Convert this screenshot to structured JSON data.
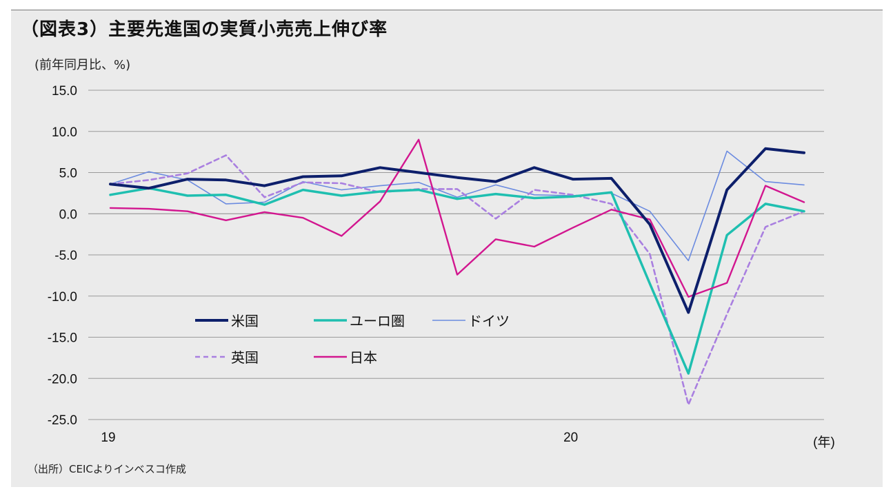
{
  "header": {
    "title": "（図表3）主要先進国の実質小売売上伸び率",
    "unit": "(前年同月比、%)"
  },
  "footer": {
    "source": "（出所）CEICよりインベスコ作成"
  },
  "chart_data": {
    "type": "line",
    "title": "（図表3）主要先進国の実質小売売上伸び率",
    "ylabel": "(前年同月比、%)",
    "xlabel": "(年)",
    "ylim": [
      -25,
      15
    ],
    "yticks": [
      15,
      10,
      5,
      0,
      -5,
      -10,
      -15,
      -20,
      -25
    ],
    "ytick_labels": [
      "15.0",
      "10.0",
      "5.0",
      "0.0",
      "-5.0",
      "-10.0",
      "-15.0",
      "-20.0",
      "-25.0"
    ],
    "x_labels": [
      {
        "index": 0,
        "label": "19"
      },
      {
        "index": 12,
        "label": "20"
      }
    ],
    "x_unit_label": "(年)",
    "n_points": 19,
    "grid": true,
    "series": [
      {
        "name": "米国",
        "color": "#0d1f6b",
        "dash": false,
        "width": 4,
        "values": [
          3.6,
          3.1,
          4.2,
          4.1,
          3.4,
          4.5,
          4.6,
          5.6,
          5.0,
          4.4,
          3.9,
          5.6,
          4.2,
          4.3,
          -1.3,
          -12.0,
          2.9,
          7.9,
          7.4
        ]
      },
      {
        "name": "ユーロ圏",
        "color": "#1fbfb0",
        "dash": false,
        "width": 3.5,
        "values": [
          2.3,
          3.1,
          2.2,
          2.3,
          1.1,
          2.9,
          2.2,
          2.7,
          2.9,
          1.8,
          2.4,
          1.9,
          2.1,
          2.6,
          -8.5,
          -19.4,
          -2.6,
          1.2,
          0.3
        ]
      },
      {
        "name": "ドイツ",
        "color": "#6b8be0",
        "dash": false,
        "width": 1.6,
        "values": [
          3.6,
          5.1,
          4.1,
          1.2,
          1.4,
          3.9,
          2.9,
          3.4,
          3.8,
          2.0,
          3.5,
          2.3,
          2.2,
          2.5,
          0.3,
          -5.7,
          7.6,
          3.9,
          3.5
        ]
      },
      {
        "name": "英国",
        "color": "#a97fe0",
        "dash": true,
        "width": 2.6,
        "values": [
          3.6,
          4.1,
          4.9,
          7.1,
          2.0,
          3.8,
          3.7,
          2.6,
          3.0,
          3.0,
          -0.6,
          2.9,
          2.3,
          1.2,
          -4.9,
          -23.2,
          -12.2,
          -1.6,
          0.3
        ]
      },
      {
        "name": "日本",
        "color": "#d2168f",
        "dash": false,
        "width": 2.4,
        "values": [
          0.7,
          0.6,
          0.3,
          -0.8,
          0.2,
          -0.5,
          -2.7,
          1.5,
          9.0,
          -7.4,
          -3.1,
          -4.0,
          -1.7,
          0.5,
          -0.7,
          -10.1,
          -8.4,
          3.4,
          1.4
        ]
      }
    ],
    "legend": [
      {
        "name": "米国"
      },
      {
        "name": "ユーロ圏"
      },
      {
        "name": "ドイツ"
      },
      {
        "name": "英国"
      },
      {
        "name": "日本"
      }
    ]
  }
}
